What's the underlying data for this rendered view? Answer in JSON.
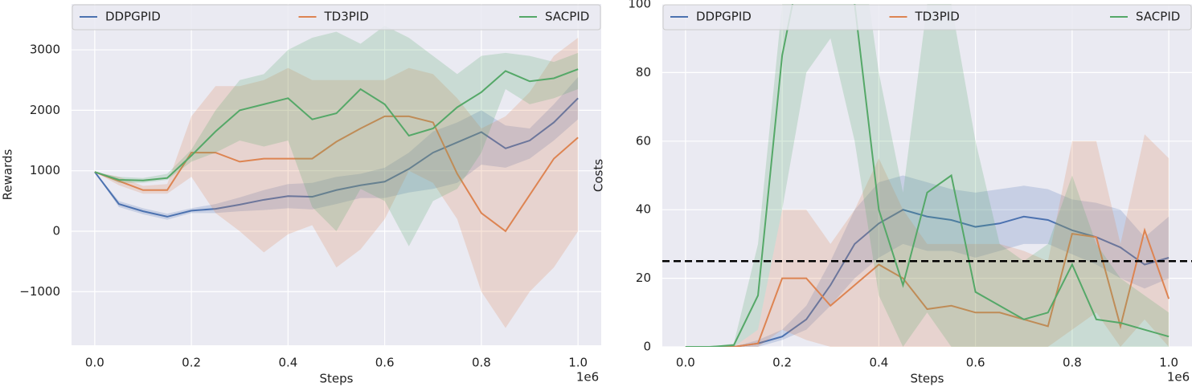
{
  "chart_data": [
    {
      "type": "line",
      "ylabel": "Rewards",
      "xlabel": "Steps",
      "x_offset_label": "1e6",
      "x": [
        0,
        0.05,
        0.1,
        0.15,
        0.2,
        0.25,
        0.3,
        0.35,
        0.4,
        0.45,
        0.5,
        0.55,
        0.6,
        0.65,
        0.7,
        0.75,
        0.8,
        0.85,
        0.9,
        0.95,
        1.0
      ],
      "series": [
        {
          "name": "DDPGPID",
          "color": "#4c72b0",
          "values": [
            980,
            450,
            330,
            240,
            340,
            370,
            440,
            520,
            580,
            570,
            680,
            760,
            820,
            1030,
            1300,
            1470,
            1640,
            1370,
            1500,
            1800,
            2200
          ],
          "lower": [
            980,
            400,
            280,
            190,
            300,
            300,
            330,
            350,
            380,
            360,
            450,
            550,
            550,
            640,
            700,
            800,
            1100,
            1050,
            1200,
            1500,
            1850
          ],
          "upper": [
            980,
            500,
            380,
            290,
            380,
            450,
            560,
            680,
            780,
            800,
            900,
            950,
            1050,
            1300,
            1650,
            1800,
            2000,
            1750,
            1700,
            2100,
            2550
          ]
        },
        {
          "name": "TD3PID",
          "color": "#dd8452",
          "values": [
            980,
            830,
            680,
            680,
            1300,
            1300,
            1150,
            1200,
            1200,
            1200,
            1480,
            1700,
            1900,
            1900,
            1800,
            950,
            300,
            0,
            600,
            1200,
            1550
          ],
          "lower": [
            980,
            760,
            620,
            620,
            900,
            300,
            0,
            -350,
            -50,
            100,
            -600,
            -300,
            200,
            1000,
            800,
            200,
            -1000,
            -1600,
            -1000,
            -600,
            0
          ],
          "upper": [
            980,
            900,
            750,
            780,
            1900,
            2400,
            2400,
            2500,
            2700,
            2500,
            2500,
            2500,
            2500,
            2700,
            2600,
            2200,
            1700,
            1900,
            2300,
            2900,
            3200
          ]
        },
        {
          "name": "SACPID",
          "color": "#55a868",
          "values": [
            980,
            850,
            840,
            880,
            1250,
            1650,
            2000,
            2100,
            2200,
            1850,
            1950,
            2350,
            2100,
            1580,
            1700,
            2050,
            2300,
            2650,
            2480,
            2530,
            2680
          ],
          "lower": [
            980,
            800,
            800,
            850,
            1150,
            1300,
            1500,
            1400,
            1500,
            400,
            0,
            700,
            500,
            -250,
            500,
            700,
            1300,
            2350,
            2100,
            2200,
            2350
          ],
          "upper": [
            980,
            900,
            880,
            950,
            1350,
            2000,
            2500,
            2600,
            3000,
            3200,
            3300,
            3100,
            3400,
            3200,
            2900,
            2600,
            2900,
            2950,
            2900,
            2800,
            2950
          ]
        }
      ],
      "xlim": [
        -0.048,
        1.048
      ],
      "ylim": [
        -1886,
        3758
      ],
      "xticks": [
        {
          "value": 0,
          "label": "0.0"
        },
        0.2,
        0.4,
        0.6,
        0.8,
        {
          "value": 1,
          "label": "1.0"
        }
      ],
      "yticks": [
        {
          "value": -1000,
          "label": "−1000"
        },
        0,
        1000,
        2000,
        3000
      ],
      "grid": true,
      "legend": "upper center"
    },
    {
      "type": "line",
      "ylabel": "Costs",
      "xlabel": "Steps",
      "x_offset_label": "1e6",
      "x": [
        0,
        0.05,
        0.1,
        0.15,
        0.2,
        0.25,
        0.3,
        0.35,
        0.4,
        0.45,
        0.5,
        0.55,
        0.6,
        0.65,
        0.7,
        0.75,
        0.8,
        0.85,
        0.9,
        0.95,
        1.0
      ],
      "series": [
        {
          "name": "DDPGPID",
          "color": "#4c72b0",
          "values": [
            0,
            0,
            0,
            1,
            3,
            8,
            18,
            30,
            36,
            40,
            38,
            37,
            35,
            36,
            38,
            37,
            34,
            32,
            29,
            24,
            26
          ],
          "lower": [
            0,
            0,
            0,
            0,
            2,
            5,
            12,
            20,
            26,
            30,
            28,
            28,
            26,
            28,
            30,
            30,
            27,
            24,
            20,
            17,
            20
          ],
          "upper": [
            0,
            0,
            0,
            2,
            5,
            12,
            25,
            40,
            48,
            50,
            48,
            46,
            45,
            46,
            47,
            46,
            43,
            42,
            40,
            32,
            38
          ]
        },
        {
          "name": "TD3PID",
          "color": "#dd8452",
          "values": [
            0,
            0,
            0,
            1,
            20,
            20,
            12,
            18,
            24,
            20,
            11,
            12,
            10,
            10,
            8,
            6,
            33,
            32,
            6,
            34,
            14
          ],
          "lower": [
            0,
            0,
            0,
            0,
            5,
            2,
            0,
            0,
            0,
            0,
            0,
            0,
            0,
            0,
            0,
            0,
            5,
            10,
            0,
            8,
            0
          ],
          "upper": [
            0,
            0,
            0,
            5,
            40,
            40,
            30,
            40,
            55,
            40,
            30,
            30,
            30,
            30,
            28,
            25,
            60,
            60,
            30,
            62,
            55
          ]
        },
        {
          "name": "SACPID",
          "color": "#55a868",
          "values": [
            0,
            0,
            0.5,
            15,
            85,
            120,
            130,
            100,
            40,
            18,
            45,
            50,
            16,
            12,
            8,
            10,
            24,
            8,
            7,
            5,
            3
          ],
          "lower": [
            0,
            0,
            0,
            5,
            40,
            80,
            90,
            60,
            15,
            0,
            10,
            0,
            0,
            0,
            0,
            0,
            0,
            0,
            0,
            0,
            0
          ],
          "upper": [
            0,
            0,
            1,
            30,
            100,
            150,
            150,
            130,
            80,
            45,
            100,
            100,
            60,
            30,
            25,
            30,
            50,
            30,
            20,
            15,
            10
          ]
        }
      ],
      "hline": {
        "value": 25,
        "color": "#000000",
        "style": "dashed"
      },
      "xlim": [
        -0.048,
        1.048
      ],
      "ylim": [
        0,
        100
      ],
      "xticks": [
        {
          "value": 0,
          "label": "0.0"
        },
        0.2,
        0.4,
        0.6,
        0.8,
        {
          "value": 1,
          "label": "1.0"
        }
      ],
      "yticks": [
        0,
        20,
        40,
        60,
        80,
        100
      ],
      "grid": true,
      "legend": "upper center"
    }
  ]
}
